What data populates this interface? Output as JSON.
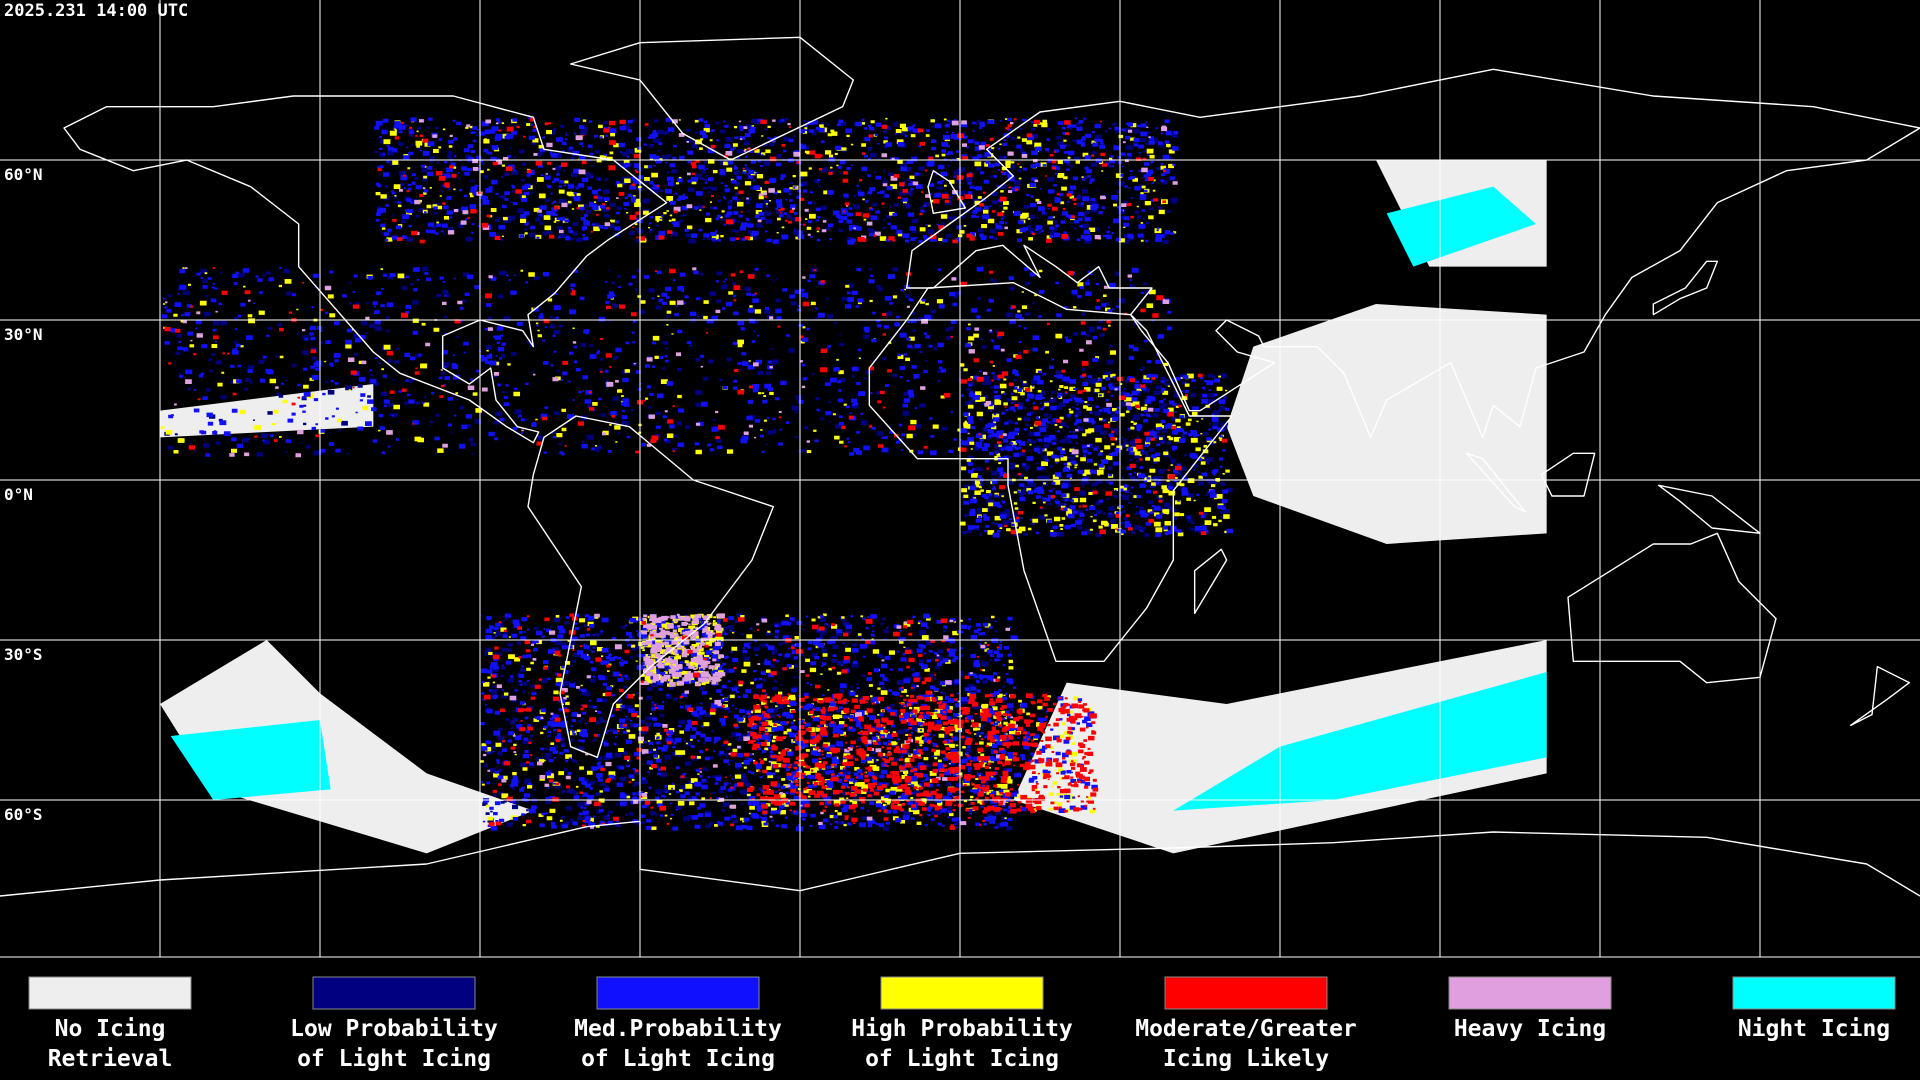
{
  "timestamp": "2025.231 14:00 UTC",
  "latitude_labels": [
    "60°N",
    "30°N",
    "0°N",
    "30°S",
    "60°S"
  ],
  "legend": [
    {
      "label": [
        "No Icing",
        "Retrieval"
      ],
      "color": "#eeeeee"
    },
    {
      "label": [
        "Low Probability",
        "of Light Icing"
      ],
      "color": "#000080"
    },
    {
      "label": [
        "Med.Probability",
        "of Light Icing"
      ],
      "color": "#1010ff"
    },
    {
      "label": [
        "High Probability",
        "of Light Icing"
      ],
      "color": "#ffff00"
    },
    {
      "label": [
        "Moderate/Greater",
        "Icing Likely"
      ],
      "color": "#ff0000"
    },
    {
      "label": [
        "Heavy Icing"
      ],
      "color": "#e0a0e0"
    },
    {
      "label": [
        "Night Icing"
      ],
      "color": "#00ffff"
    }
  ]
}
